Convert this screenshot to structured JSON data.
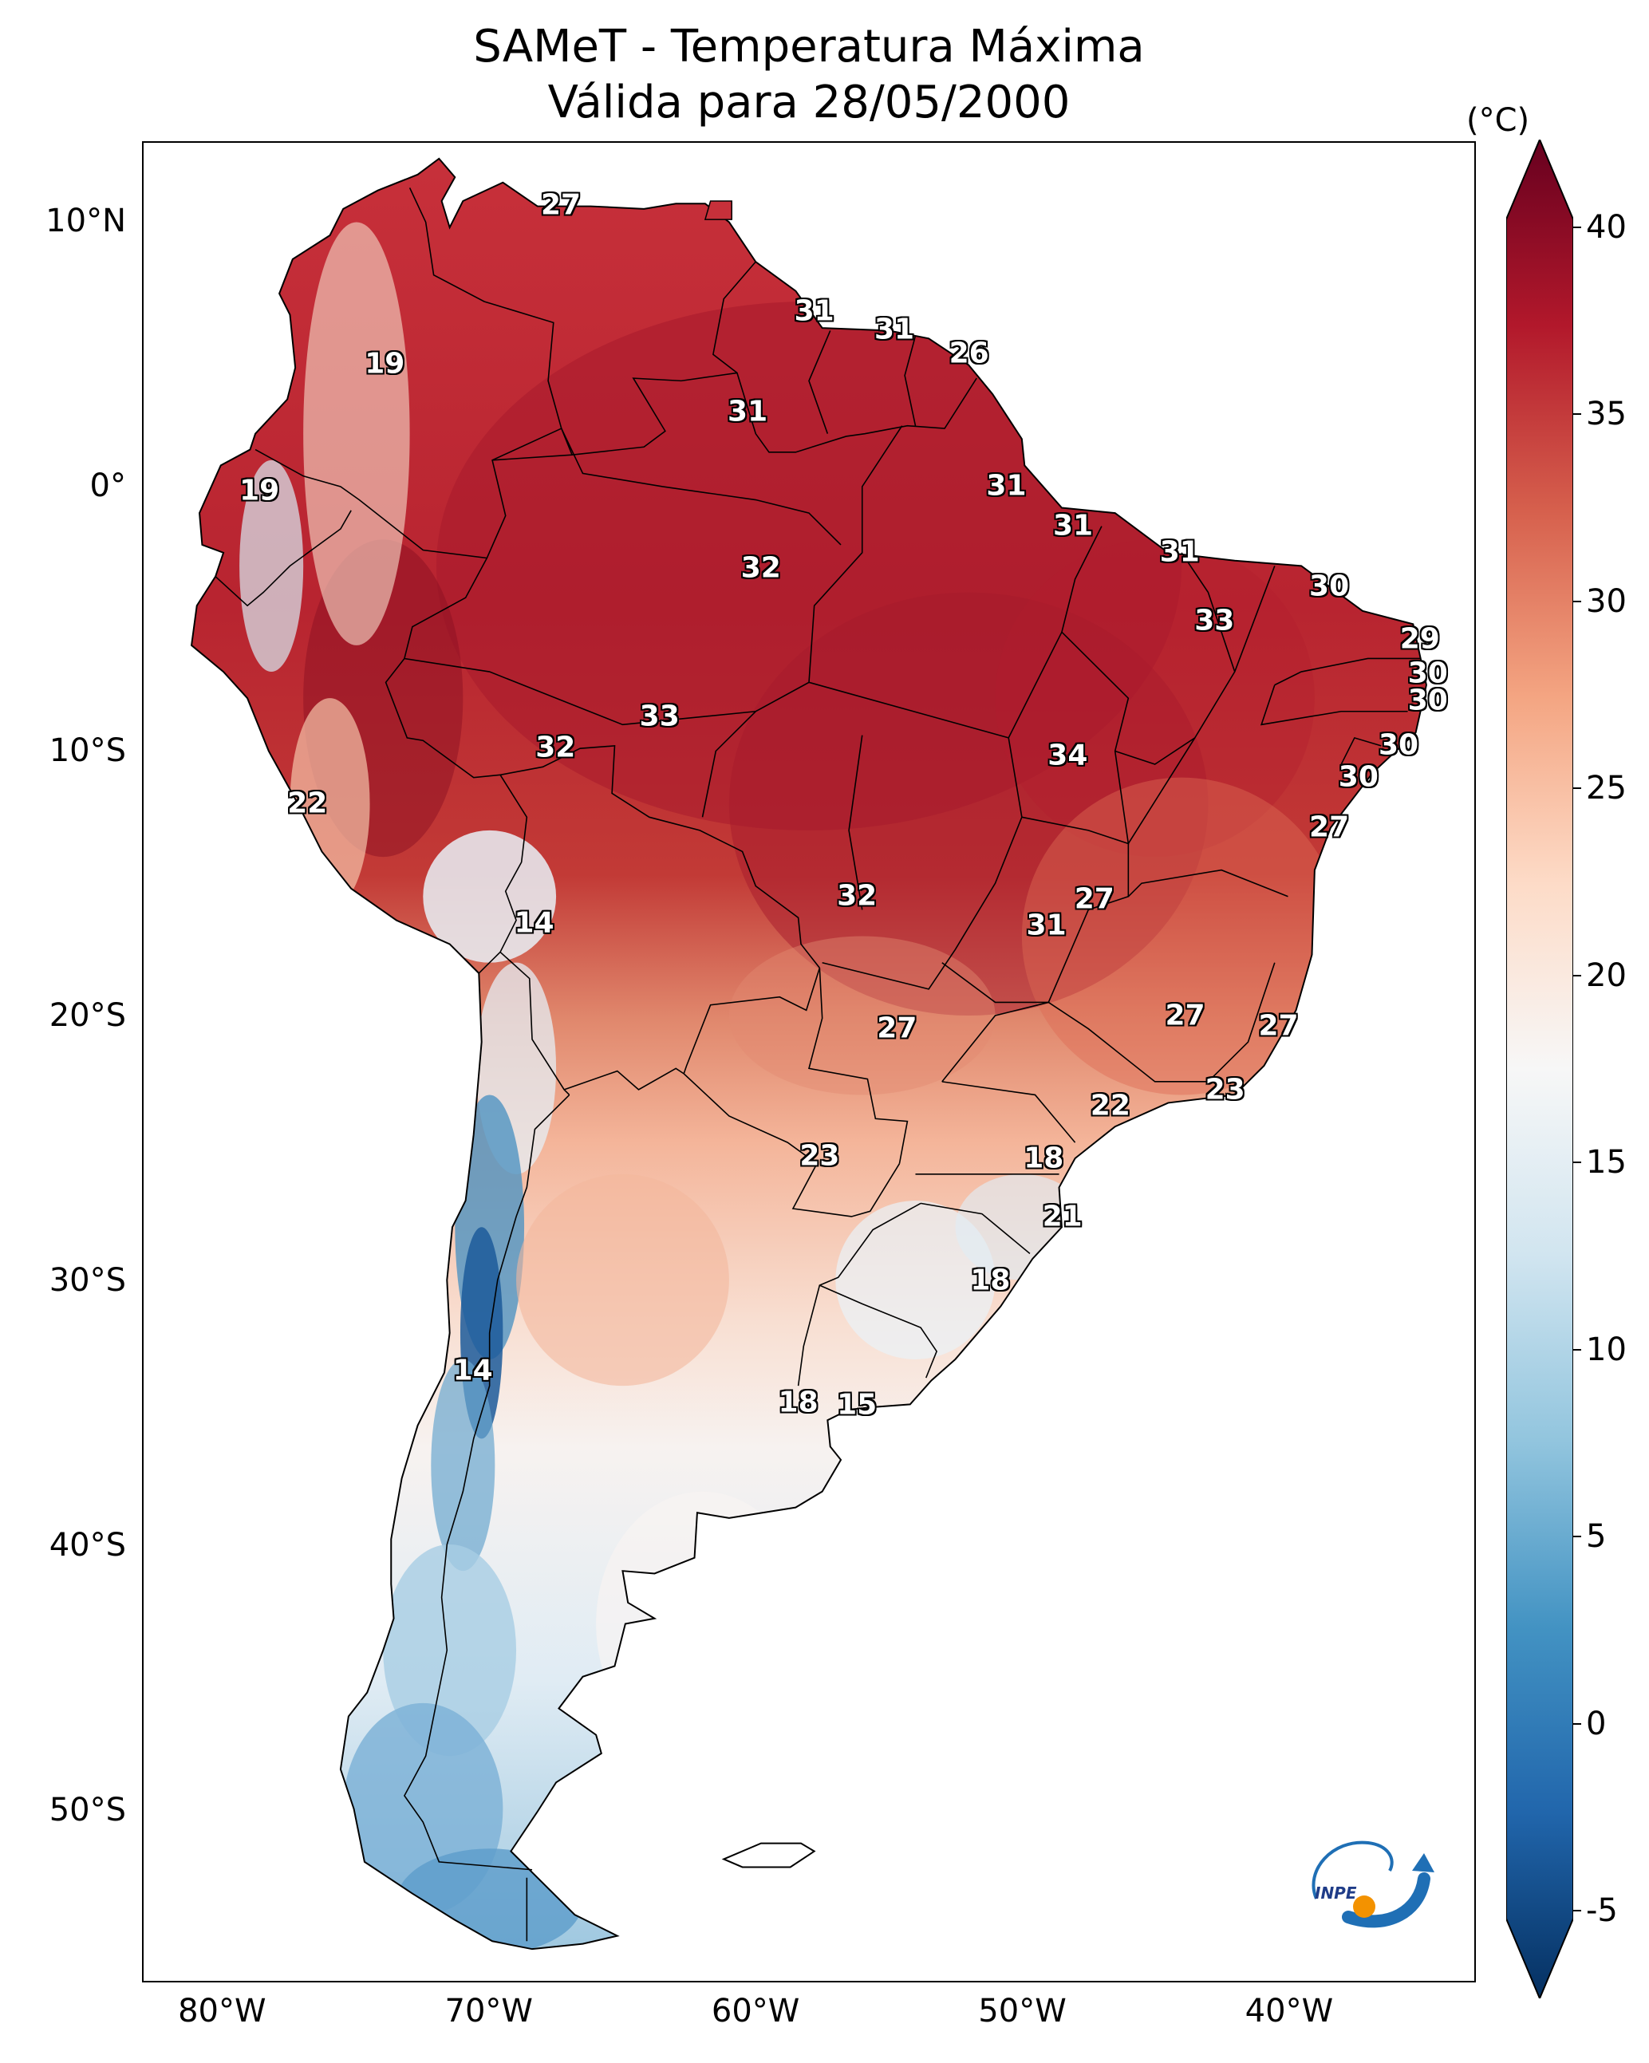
{
  "title": {
    "line1": "SAMeT - Temperatura Máxima",
    "line2": "Válida para 28/05/2000"
  },
  "lat_ticks": [
    "10°N",
    "0°",
    "10°S",
    "20°S",
    "30°S",
    "40°S",
    "50°S"
  ],
  "lon_ticks": [
    "80°W",
    "70°W",
    "60°W",
    "50°W",
    "40°W"
  ],
  "colorbar": {
    "unit": "(°C)",
    "ticks": [
      "40",
      "35",
      "30",
      "25",
      "20",
      "15",
      "10",
      "5",
      "0",
      "-5"
    ],
    "min": -7,
    "max": 41,
    "colors": [
      "#053061",
      "#2166ac",
      "#4393c3",
      "#92c5de",
      "#d1e5f0",
      "#f7f7f7",
      "#fddbc7",
      "#f4a582",
      "#d6604d",
      "#b2182b",
      "#67001f"
    ]
  },
  "values": [
    {
      "text": "27",
      "lon": -67.3,
      "lat": 10.6
    },
    {
      "text": "31",
      "lon": -57.8,
      "lat": 6.6
    },
    {
      "text": "31",
      "lon": -54.8,
      "lat": 5.9
    },
    {
      "text": "26",
      "lon": -52.0,
      "lat": 5.0
    },
    {
      "text": "19",
      "lon": -73.9,
      "lat": 4.6
    },
    {
      "text": "31",
      "lon": -60.3,
      "lat": 2.8
    },
    {
      "text": "19",
      "lon": -78.6,
      "lat": -0.2
    },
    {
      "text": "31",
      "lon": -50.6,
      "lat": 0.0
    },
    {
      "text": "31",
      "lon": -48.1,
      "lat": -1.5
    },
    {
      "text": "31",
      "lon": -44.1,
      "lat": -2.5
    },
    {
      "text": "32",
      "lon": -59.8,
      "lat": -3.1
    },
    {
      "text": "30",
      "lon": -38.5,
      "lat": -3.8
    },
    {
      "text": "33",
      "lon": -42.8,
      "lat": -5.1
    },
    {
      "text": "29",
      "lon": -35.1,
      "lat": -5.8
    },
    {
      "text": "30",
      "lon": -34.8,
      "lat": -7.1
    },
    {
      "text": "30",
      "lon": -34.8,
      "lat": -8.1
    },
    {
      "text": "33",
      "lon": -63.6,
      "lat": -8.7
    },
    {
      "text": "32",
      "lon": -67.5,
      "lat": -9.9
    },
    {
      "text": "34",
      "lon": -48.3,
      "lat": -10.2
    },
    {
      "text": "30",
      "lon": -35.9,
      "lat": -9.8
    },
    {
      "text": "30",
      "lon": -37.4,
      "lat": -11.0
    },
    {
      "text": "22",
      "lon": -76.8,
      "lat": -12.0
    },
    {
      "text": "27",
      "lon": -38.5,
      "lat": -12.9
    },
    {
      "text": "14",
      "lon": -68.3,
      "lat": -16.5
    },
    {
      "text": "32",
      "lon": -56.2,
      "lat": -15.5
    },
    {
      "text": "27",
      "lon": -47.3,
      "lat": -15.6
    },
    {
      "text": "31",
      "lon": -49.1,
      "lat": -16.6
    },
    {
      "text": "27",
      "lon": -43.9,
      "lat": -20.0
    },
    {
      "text": "27",
      "lon": -40.4,
      "lat": -20.4
    },
    {
      "text": "27",
      "lon": -54.7,
      "lat": -20.5
    },
    {
      "text": "23",
      "lon": -42.4,
      "lat": -22.8
    },
    {
      "text": "22",
      "lon": -46.7,
      "lat": -23.4
    },
    {
      "text": "23",
      "lon": -57.6,
      "lat": -25.3
    },
    {
      "text": "18",
      "lon": -49.2,
      "lat": -25.4
    },
    {
      "text": "21",
      "lon": -48.5,
      "lat": -27.6
    },
    {
      "text": "18",
      "lon": -51.2,
      "lat": -30.0
    },
    {
      "text": "14",
      "lon": -70.6,
      "lat": -33.4
    },
    {
      "text": "18",
      "lon": -58.4,
      "lat": -34.6
    },
    {
      "text": "15",
      "lon": -56.2,
      "lat": -34.7
    }
  ]
}
